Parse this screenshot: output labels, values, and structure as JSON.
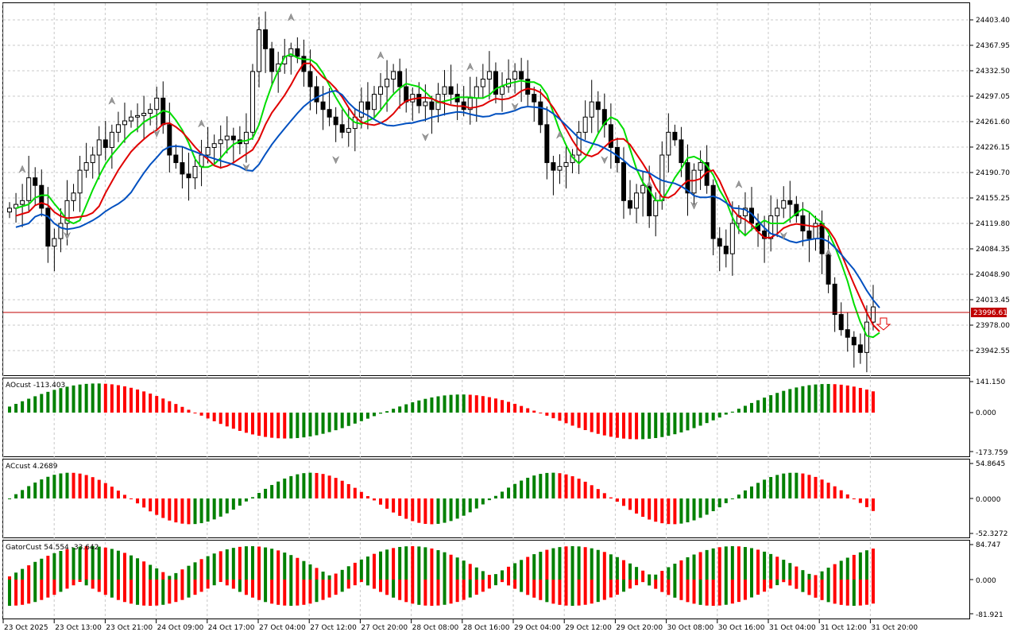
{
  "symbol_price": {
    "ticks": [
      "24403.40",
      "24367.95",
      "24332.50",
      "24297.05",
      "24261.60",
      "24226.15",
      "24190.70",
      "24155.25",
      "24119.80",
      "24084.35",
      "24048.90",
      "24013.45",
      "23978.00",
      "23942.55"
    ],
    "current_price_label": "23996.61"
  },
  "ao_panel": {
    "title": "AOcust -113.403",
    "ticks": [
      "141.150",
      "0.000",
      "-173.759"
    ]
  },
  "ac_panel": {
    "title": "ACcust 4.2689",
    "ticks": [
      "54.8645",
      "0.0000",
      "-52.3272"
    ]
  },
  "gator_panel": {
    "title": "GatorCust 54.554 -33.642",
    "ticks": [
      "84.747",
      "0.000",
      "-81.921"
    ]
  },
  "time_axis": {
    "labels": [
      "23 Oct 2025",
      "23 Oct 13:00",
      "23 Oct 21:00",
      "24 Oct 09:00",
      "24 Oct 17:00",
      "27 Oct 04:00",
      "27 Oct 12:00",
      "27 Oct 20:00",
      "28 Oct 08:00",
      "28 Oct 16:00",
      "29 Oct 04:00",
      "29 Oct 12:00",
      "29 Oct 20:00",
      "30 Oct 08:00",
      "30 Oct 16:00",
      "31 Oct 04:00",
      "31 Oct 12:00",
      "31 Oct 20:00"
    ]
  },
  "colors": {
    "up_bar": "#008000",
    "down_bar": "#ff0000",
    "ma_green": "#00dd00",
    "ma_red": "#e00000",
    "ma_blue": "#0050c0",
    "price_line": "#c00000",
    "grid": "#c8c8c8"
  },
  "chart_data": {
    "type": "candlestick",
    "price_range": [
      23920,
      24410
    ],
    "closes": [
      24140,
      24145,
      24150,
      24180,
      24170,
      24140,
      24090,
      24100,
      24120,
      24150,
      24160,
      24190,
      24200,
      24210,
      24230,
      24220,
      24240,
      24250,
      24255,
      24260,
      24262,
      24265,
      24270,
      24285,
      24250,
      24210,
      24200,
      24185,
      24180,
      24195,
      24210,
      24220,
      24225,
      24230,
      24235,
      24230,
      24225,
      24240,
      24320,
      24375,
      24350,
      24320,
      24330,
      24340,
      24350,
      24340,
      24320,
      24300,
      24280,
      24270,
      24260,
      24250,
      24240,
      24245,
      24260,
      24280,
      24270,
      24290,
      24300,
      24310,
      24320,
      24300,
      24280,
      24290,
      24275,
      24280,
      24270,
      24290,
      24300,
      24290,
      24280,
      24270,
      24285,
      24300,
      24310,
      24320,
      24290,
      24300,
      24310,
      24320,
      24310,
      24290,
      24280,
      24250,
      24200,
      24190,
      24195,
      24200,
      24210,
      24240,
      24260,
      24280,
      24270,
      24250,
      24220,
      24200,
      24150,
      24140,
      24160,
      24170,
      24130,
      24150,
      24210,
      24240,
      24230,
      24200,
      24160,
      24190,
      24200,
      24170,
      24100,
      24090,
      24080,
      24120,
      24130,
      24140,
      24120,
      24110,
      24100,
      24130,
      24140,
      24150,
      24145,
      24130,
      24110,
      24100,
      24120,
      24080,
      24040,
      24000,
      23980,
      23970,
      23960,
      23950,
      23990,
      24010
    ]
  }
}
